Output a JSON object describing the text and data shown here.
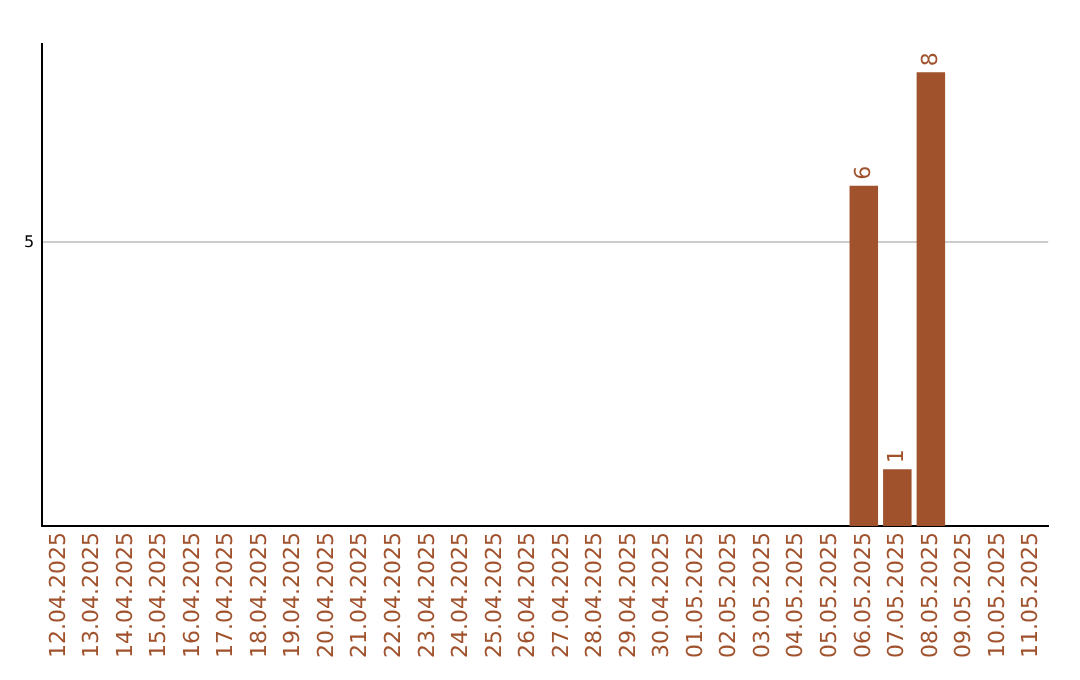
{
  "chart_data": {
    "type": "bar",
    "categories": [
      "12.04.2025",
      "13.04.2025",
      "14.04.2025",
      "15.04.2025",
      "16.04.2025",
      "17.04.2025",
      "18.04.2025",
      "19.04.2025",
      "20.04.2025",
      "21.04.2025",
      "22.04.2025",
      "23.04.2025",
      "24.04.2025",
      "25.04.2025",
      "26.04.2025",
      "27.04.2025",
      "28.04.2025",
      "29.04.2025",
      "30.04.2025",
      "01.05.2025",
      "02.05.2025",
      "03.05.2025",
      "04.05.2025",
      "05.05.2025",
      "06.05.2025",
      "07.05.2025",
      "08.05.2025",
      "09.05.2025",
      "10.05.2025",
      "11.05.2025"
    ],
    "values": [
      null,
      null,
      null,
      null,
      null,
      null,
      null,
      null,
      null,
      null,
      null,
      null,
      null,
      null,
      null,
      null,
      null,
      null,
      null,
      null,
      null,
      null,
      null,
      null,
      6,
      1,
      8,
      null,
      null,
      null
    ],
    "color": "#a0522d",
    "ylim": [
      0,
      8.5
    ],
    "yticks": [
      5
    ],
    "grid": "y",
    "data_labels": true,
    "legend": false
  }
}
